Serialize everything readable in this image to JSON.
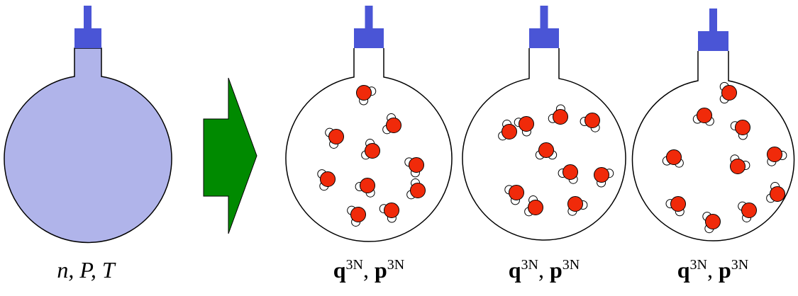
{
  "macro_label": "n, P, T",
  "micro_labels": [
    {
      "position": {
        "symbol": "q",
        "superscript": "3N"
      },
      "separator": ", ",
      "momentum": {
        "symbol": "p",
        "superscript": "3N"
      }
    },
    {
      "position": {
        "symbol": "q",
        "superscript": "3N"
      },
      "separator": ", ",
      "momentum": {
        "symbol": "p",
        "superscript": "3N"
      }
    },
    {
      "position": {
        "symbol": "q",
        "superscript": "3N"
      },
      "separator": ", ",
      "momentum": {
        "symbol": "p",
        "superscript": "3N"
      }
    }
  ]
}
